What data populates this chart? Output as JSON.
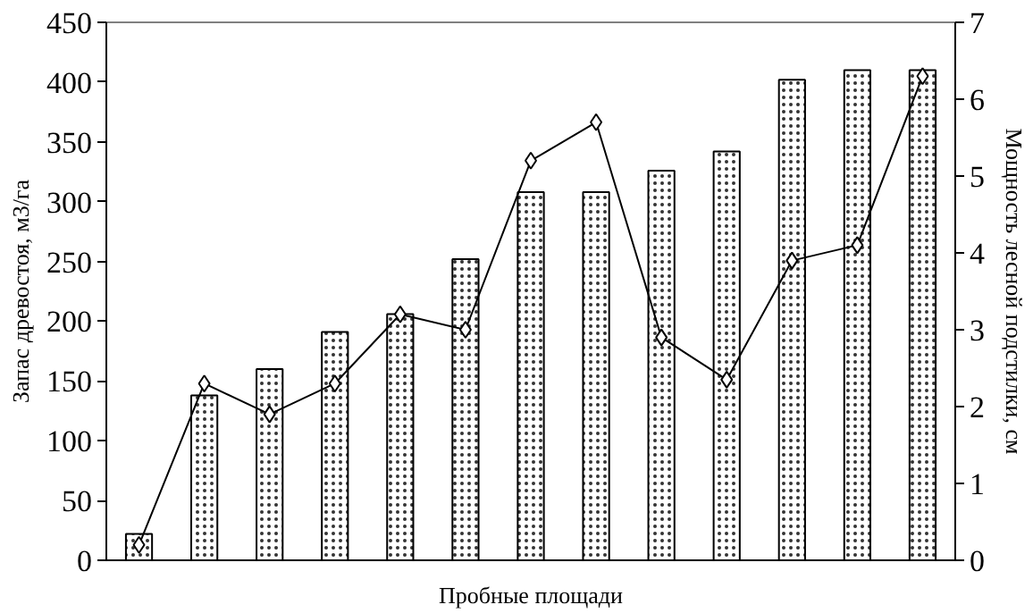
{
  "chart_data": {
    "type": "bar",
    "xlabel": "Пробные площади",
    "ylabel": "Запас древостоя, м3/га",
    "y2label": "Мощность лесной подстилки, см",
    "categories": [
      null,
      null,
      null,
      null,
      null,
      null,
      null,
      null,
      null,
      null,
      null,
      null,
      null
    ],
    "series": [
      {
        "color": "#ffffff",
        "values": [
          22,
          138,
          160,
          191,
          206,
          252,
          308,
          308,
          326,
          342,
          402,
          410,
          410
        ]
      },
      {
        "type": "line",
        "axis": "y2",
        "color": "#000000",
        "marker": "diamond",
        "values": [
          0.2,
          2.3,
          1.9,
          2.3,
          3.2,
          3.0,
          5.2,
          5.7,
          2.9,
          2.35,
          3.9,
          4.1,
          6.3
        ]
      }
    ],
    "ylim": [
      0,
      450
    ],
    "yticks": [
      0,
      50,
      100,
      150,
      200,
      250,
      300,
      350,
      400,
      450
    ],
    "y2lim": [
      0,
      7
    ],
    "y2ticks": [
      0,
      1,
      2,
      3,
      4,
      5,
      6,
      7
    ],
    "grid": false
  }
}
